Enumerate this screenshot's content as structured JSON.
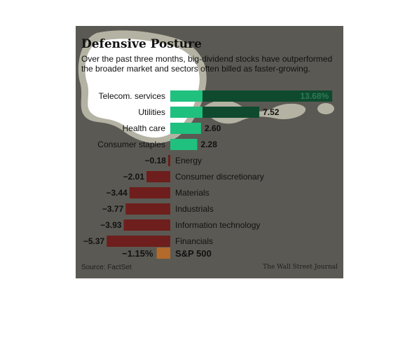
{
  "chart_data": {
    "type": "bar",
    "orientation": "horizontal",
    "title": "Defensive Posture",
    "subtitle": "Over the past three months, big-dividend stocks have outperformed the broader market and sectors often billed as faster-growing.",
    "categories": [
      "Telecom. services",
      "Utilities",
      "Health care",
      "Consumer staples",
      "Energy",
      "Consumer discretionary",
      "Materials",
      "Industrials",
      "Information technology",
      "Financials"
    ],
    "value_labels": [
      "13.68%",
      "7.52",
      "2.60",
      "2.28",
      "−0.18",
      "−2.01",
      "−3.44",
      "−3.77",
      "−3.93",
      "−5.37"
    ],
    "values": [
      13.68,
      7.52,
      2.6,
      2.28,
      -0.18,
      -2.01,
      -3.44,
      -3.77,
      -3.93,
      -5.37
    ],
    "benchmark": {
      "label": "S&P 500",
      "value": -1.15,
      "value_label": "−1.15%"
    },
    "source": "Source: FactSet",
    "credit": "The Wall Street Journal",
    "colors": {
      "background": "#5b5953",
      "positive_bar": "#0f4a2e",
      "positive_highlight": "#20c07f",
      "negative_bar": "#6e1e1c",
      "benchmark_bar": "#b36a2a",
      "blob": "#b4b2a3",
      "blob_fill": "#ffffff"
    }
  }
}
